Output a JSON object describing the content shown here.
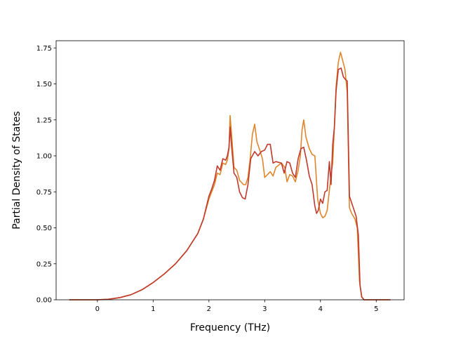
{
  "chart_data": {
    "type": "line",
    "title": "",
    "xlabel": "Frequency (THz)",
    "ylabel": "Partial Density of States",
    "xlim": [
      -0.74,
      5.5
    ],
    "ylim": [
      0,
      1.8
    ],
    "grid": false,
    "legend": "none",
    "x_ticks": [
      {
        "value": 0,
        "label": "0"
      },
      {
        "value": 1,
        "label": "1"
      },
      {
        "value": 2,
        "label": "2"
      },
      {
        "value": 3,
        "label": "3"
      },
      {
        "value": 4,
        "label": "4"
      },
      {
        "value": 5,
        "label": "5"
      }
    ],
    "y_ticks": [
      {
        "value": 0,
        "label": "0.00"
      },
      {
        "value": 0.25,
        "label": "0.25"
      },
      {
        "value": 0.5,
        "label": "0.50"
      },
      {
        "value": 0.75,
        "label": "0.75"
      },
      {
        "value": 1.0,
        "label": "1.00"
      },
      {
        "value": 1.25,
        "label": "1.25"
      },
      {
        "value": 1.5,
        "label": "1.50"
      },
      {
        "value": 1.75,
        "label": "1.75"
      }
    ],
    "series": [
      {
        "color": "#e0852a",
        "points": [
          [
            -0.5,
            0.0
          ],
          [
            0.0,
            0.0
          ],
          [
            0.2,
            0.004
          ],
          [
            0.4,
            0.015
          ],
          [
            0.6,
            0.035
          ],
          [
            0.8,
            0.07
          ],
          [
            1.0,
            0.12
          ],
          [
            1.2,
            0.18
          ],
          [
            1.4,
            0.25
          ],
          [
            1.6,
            0.34
          ],
          [
            1.8,
            0.46
          ],
          [
            1.9,
            0.56
          ],
          [
            1.95,
            0.63
          ],
          [
            2.0,
            0.7
          ],
          [
            2.05,
            0.75
          ],
          [
            2.1,
            0.8
          ],
          [
            2.15,
            0.88
          ],
          [
            2.2,
            0.87
          ],
          [
            2.25,
            0.95
          ],
          [
            2.3,
            0.94
          ],
          [
            2.33,
            0.97
          ],
          [
            2.36,
            1.05
          ],
          [
            2.38,
            1.28
          ],
          [
            2.41,
            1.13
          ],
          [
            2.45,
            0.92
          ],
          [
            2.5,
            0.9
          ],
          [
            2.55,
            0.83
          ],
          [
            2.62,
            0.8
          ],
          [
            2.66,
            0.8
          ],
          [
            2.7,
            0.85
          ],
          [
            2.74,
            0.98
          ],
          [
            2.78,
            1.15
          ],
          [
            2.82,
            1.22
          ],
          [
            2.86,
            1.1
          ],
          [
            2.92,
            1.03
          ],
          [
            2.96,
            0.98
          ],
          [
            3.0,
            0.85
          ],
          [
            3.05,
            0.87
          ],
          [
            3.1,
            0.89
          ],
          [
            3.15,
            0.86
          ],
          [
            3.2,
            0.92
          ],
          [
            3.3,
            0.95
          ],
          [
            3.36,
            0.92
          ],
          [
            3.4,
            0.82
          ],
          [
            3.45,
            0.87
          ],
          [
            3.5,
            0.86
          ],
          [
            3.55,
            0.82
          ],
          [
            3.6,
            0.9
          ],
          [
            3.64,
            1.0
          ],
          [
            3.67,
            1.18
          ],
          [
            3.7,
            1.25
          ],
          [
            3.74,
            1.13
          ],
          [
            3.8,
            1.05
          ],
          [
            3.85,
            1.01
          ],
          [
            3.9,
            1.0
          ],
          [
            3.95,
            0.7
          ],
          [
            4.0,
            0.6
          ],
          [
            4.04,
            0.57
          ],
          [
            4.08,
            0.58
          ],
          [
            4.12,
            0.62
          ],
          [
            4.16,
            0.76
          ],
          [
            4.19,
            0.87
          ],
          [
            4.22,
            0.95
          ],
          [
            4.25,
            1.2
          ],
          [
            4.28,
            1.48
          ],
          [
            4.32,
            1.65
          ],
          [
            4.36,
            1.72
          ],
          [
            4.4,
            1.66
          ],
          [
            4.44,
            1.6
          ],
          [
            4.48,
            1.44
          ],
          [
            4.52,
            0.64
          ],
          [
            4.56,
            0.6
          ],
          [
            4.62,
            0.56
          ],
          [
            4.66,
            0.5
          ],
          [
            4.7,
            0.13
          ],
          [
            4.74,
            0.02
          ],
          [
            4.78,
            0.0
          ],
          [
            5.25,
            0.0
          ]
        ]
      },
      {
        "color": "#c0392b",
        "points": [
          [
            -0.5,
            0.0
          ],
          [
            0.0,
            0.0
          ],
          [
            0.2,
            0.004
          ],
          [
            0.4,
            0.015
          ],
          [
            0.6,
            0.035
          ],
          [
            0.8,
            0.07
          ],
          [
            1.0,
            0.12
          ],
          [
            1.2,
            0.18
          ],
          [
            1.4,
            0.25
          ],
          [
            1.6,
            0.34
          ],
          [
            1.8,
            0.46
          ],
          [
            1.9,
            0.56
          ],
          [
            1.95,
            0.64
          ],
          [
            2.0,
            0.72
          ],
          [
            2.05,
            0.77
          ],
          [
            2.1,
            0.83
          ],
          [
            2.15,
            0.93
          ],
          [
            2.2,
            0.9
          ],
          [
            2.25,
            0.98
          ],
          [
            2.3,
            0.97
          ],
          [
            2.33,
            1.0
          ],
          [
            2.36,
            1.06
          ],
          [
            2.38,
            1.2
          ],
          [
            2.41,
            1.05
          ],
          [
            2.45,
            0.88
          ],
          [
            2.5,
            0.85
          ],
          [
            2.55,
            0.75
          ],
          [
            2.6,
            0.71
          ],
          [
            2.65,
            0.7
          ],
          [
            2.7,
            0.8
          ],
          [
            2.75,
            0.98
          ],
          [
            2.82,
            1.03
          ],
          [
            2.88,
            1.0
          ],
          [
            2.94,
            1.03
          ],
          [
            3.0,
            1.04
          ],
          [
            3.05,
            1.08
          ],
          [
            3.1,
            1.08
          ],
          [
            3.15,
            0.95
          ],
          [
            3.2,
            0.96
          ],
          [
            3.3,
            0.95
          ],
          [
            3.35,
            0.88
          ],
          [
            3.4,
            0.96
          ],
          [
            3.45,
            0.95
          ],
          [
            3.5,
            0.88
          ],
          [
            3.55,
            0.85
          ],
          [
            3.6,
            0.98
          ],
          [
            3.65,
            1.05
          ],
          [
            3.7,
            1.06
          ],
          [
            3.75,
            0.97
          ],
          [
            3.8,
            0.86
          ],
          [
            3.85,
            0.8
          ],
          [
            3.9,
            0.65
          ],
          [
            3.93,
            0.6
          ],
          [
            3.96,
            0.62
          ],
          [
            4.0,
            0.7
          ],
          [
            4.04,
            0.67
          ],
          [
            4.08,
            0.75
          ],
          [
            4.12,
            0.76
          ],
          [
            4.16,
            0.96
          ],
          [
            4.19,
            0.8
          ],
          [
            4.22,
            1.08
          ],
          [
            4.25,
            1.2
          ],
          [
            4.28,
            1.45
          ],
          [
            4.32,
            1.6
          ],
          [
            4.37,
            1.61
          ],
          [
            4.41,
            1.55
          ],
          [
            4.45,
            1.53
          ],
          [
            4.48,
            1.52
          ],
          [
            4.52,
            0.72
          ],
          [
            4.58,
            0.65
          ],
          [
            4.64,
            0.58
          ],
          [
            4.68,
            0.45
          ],
          [
            4.71,
            0.1
          ],
          [
            4.74,
            0.02
          ],
          [
            4.78,
            0.0
          ],
          [
            5.25,
            0.0
          ]
        ]
      }
    ]
  }
}
